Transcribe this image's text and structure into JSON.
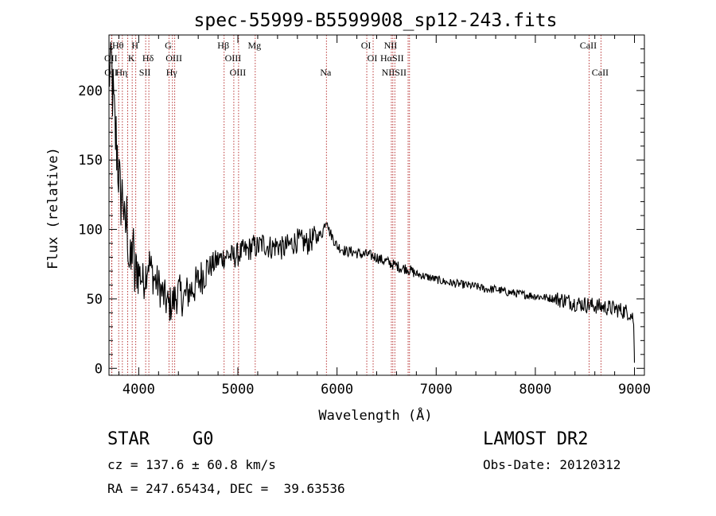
{
  "chart_data": {
    "type": "line",
    "title": "spec-55999-B5599908_sp12-243.fits",
    "xlabel": "Wavelength (Å)",
    "ylabel": "Flux (relative)",
    "xlim": [
      3700,
      9100
    ],
    "ylim": [
      -5,
      240
    ],
    "xticks": [
      4000,
      5000,
      6000,
      7000,
      8000,
      9000
    ],
    "yticks": [
      0,
      50,
      100,
      150,
      200
    ],
    "series_color": "#000000",
    "line_color": "#b22222",
    "grid": false,
    "series": [
      {
        "x": [
          3700,
          3720,
          3740,
          3760,
          3780,
          3800,
          3820,
          3840,
          3860,
          3880,
          3900,
          3920,
          3940,
          3960,
          3980,
          4000,
          4050,
          4100,
          4150,
          4200,
          4250,
          4300,
          4350,
          4400,
          4450,
          4500,
          4550,
          4600,
          4650,
          4700,
          4750,
          4800,
          4850,
          4900,
          4950,
          5000,
          5050,
          5100,
          5150,
          5200,
          5250,
          5300,
          5350,
          5400,
          5450,
          5500,
          5550,
          5600,
          5650,
          5700,
          5750,
          5800,
          5850,
          5880,
          5900,
          5920,
          5950,
          6000,
          6050,
          6100,
          6150,
          6200,
          6250,
          6300,
          6350,
          6400,
          6450,
          6500,
          6550,
          6600,
          6650,
          6700,
          6750,
          6800,
          6850,
          6900,
          6950,
          7000,
          7050,
          7100,
          7200,
          7300,
          7400,
          7500,
          7600,
          7700,
          7800,
          7900,
          8000,
          8100,
          8200,
          8300,
          8400,
          8500,
          8600,
          8700,
          8800,
          8900,
          8950,
          8990,
          9000
        ],
        "values": [
          210,
          225,
          195,
          170,
          160,
          140,
          120,
          130,
          95,
          110,
          80,
          70,
          95,
          60,
          75,
          70,
          62,
          78,
          65,
          60,
          52,
          45,
          48,
          55,
          50,
          55,
          58,
          62,
          68,
          72,
          75,
          78,
          80,
          82,
          80,
          82,
          84,
          85,
          88,
          87,
          90,
          88,
          87,
          89,
          86,
          88,
          90,
          92,
          91,
          90,
          93,
          95,
          97,
          105,
          108,
          99,
          95,
          88,
          86,
          84,
          84,
          83,
          82,
          82,
          81,
          80,
          78,
          77,
          75,
          74,
          72,
          72,
          70,
          68,
          67,
          66,
          65,
          64,
          63,
          62,
          61,
          60,
          59,
          57,
          57,
          55,
          54,
          53,
          52,
          51,
          50,
          49,
          47,
          46,
          45,
          44,
          43,
          41,
          40,
          36,
          4
        ]
      }
    ],
    "annotations": [
      {
        "label": "Hθ",
        "x": 3798,
        "row": 1
      },
      {
        "label": "H",
        "x": 3970,
        "row": 1
      },
      {
        "label": "G",
        "x": 4305,
        "row": 1
      },
      {
        "label": "Hβ",
        "x": 4861,
        "row": 1
      },
      {
        "label": "Mg",
        "x": 5175,
        "row": 1
      },
      {
        "label": "OI",
        "x": 6300,
        "row": 1
      },
      {
        "label": "NII",
        "x": 6548,
        "row": 1
      },
      {
        "label": "CaII",
        "x": 8542,
        "row": 1
      },
      {
        "label": "OII",
        "x": 3727,
        "row": 2
      },
      {
        "label": "K",
        "x": 3934,
        "row": 2
      },
      {
        "label": "Hδ",
        "x": 4102,
        "row": 2
      },
      {
        "label": "OIII",
        "x": 4363,
        "row": 2
      },
      {
        "label": "OIII",
        "x": 4959,
        "row": 2
      },
      {
        "label": "OI",
        "x": 6364,
        "row": 2
      },
      {
        "label": "HαSII",
        "x": 6563,
        "row": 2
      },
      {
        "label": "OII",
        "x": 3729,
        "row": 3
      },
      {
        "label": "Hη",
        "x": 3835,
        "row": 3
      },
      {
        "label": "SII",
        "x": 4070,
        "row": 3
      },
      {
        "label": "Hγ",
        "x": 4340,
        "row": 3
      },
      {
        "label": "OIII",
        "x": 5007,
        "row": 3
      },
      {
        "label": "Na",
        "x": 5893,
        "row": 3
      },
      {
        "label": "NIISII",
        "x": 6583,
        "row": 3
      },
      {
        "label": "CaII",
        "x": 8662,
        "row": 3
      }
    ],
    "line_positions": [
      3727,
      3729,
      3798,
      3835,
      3889,
      3934,
      3970,
      4070,
      4102,
      4305,
      4340,
      4363,
      4861,
      4959,
      5007,
      5175,
      5893,
      6300,
      6364,
      6548,
      6563,
      6583,
      6717,
      6731,
      8542,
      8662
    ]
  },
  "footer": {
    "object_class": "STAR",
    "subclass": "G0",
    "survey": "LAMOST DR2",
    "redshift": "cz = 137.6 ± 60.8 km/s",
    "obs_date": "Obs-Date: 20120312",
    "coords": "RA = 247.65434, DEC =  39.63536"
  }
}
